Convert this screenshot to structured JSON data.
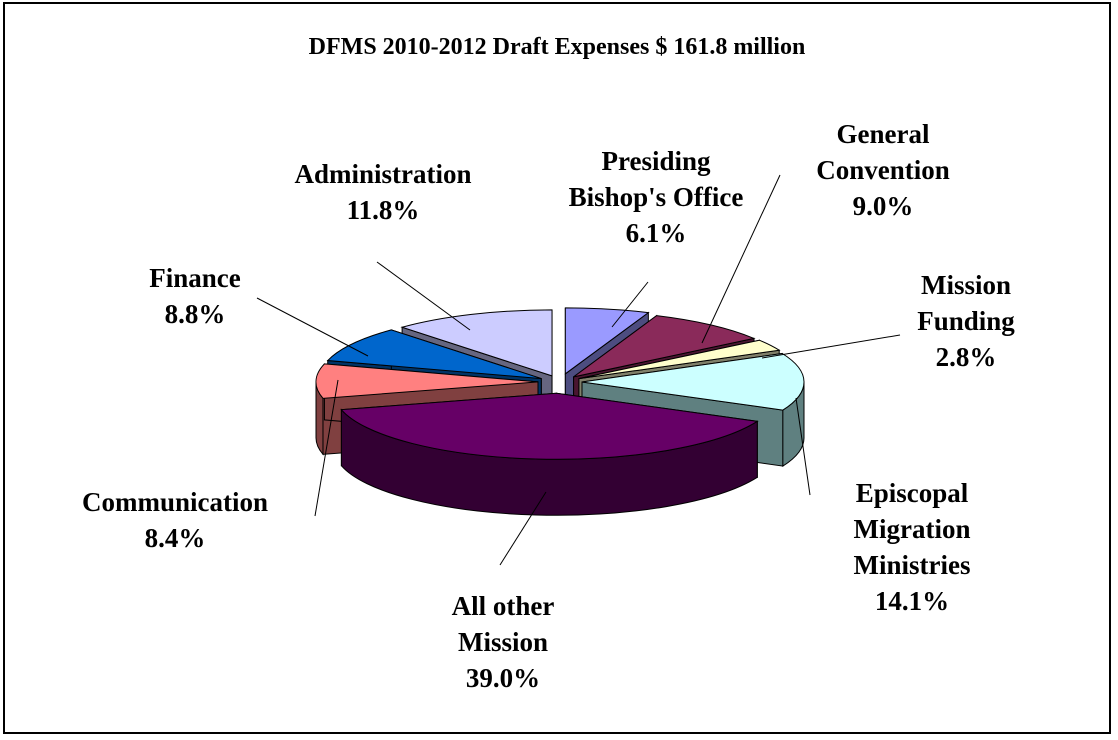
{
  "chart_data": {
    "type": "pie",
    "title": "DFMS 2010-2012 Draft Expenses $ 161.8 million",
    "slices": [
      {
        "label_lines": [
          "Presiding",
          "Bishop's Office"
        ],
        "percent_text": "6.1%",
        "value": 6.1,
        "top": "#9a9aff",
        "side": "#4d4d80"
      },
      {
        "label_lines": [
          "General",
          "Convention"
        ],
        "percent_text": "9.0%",
        "value": 9.0,
        "top": "#8a2a5a",
        "side": "#4a1530"
      },
      {
        "label_lines": [
          "Mission",
          "Funding"
        ],
        "percent_text": "2.8%",
        "value": 2.8,
        "top": "#ffffcc",
        "side": "#80806a"
      },
      {
        "label_lines": [
          "Episcopal",
          "Migration",
          "Ministries"
        ],
        "percent_text": "14.1%",
        "value": 14.1,
        "top": "#ccffff",
        "side": "#5f8080"
      },
      {
        "label_lines": [
          "All other",
          "Mission"
        ],
        "percent_text": "39.0%",
        "value": 39.0,
        "top": "#660066",
        "side": "#330033"
      },
      {
        "label_lines": [
          "Communication"
        ],
        "percent_text": "8.4%",
        "value": 8.4,
        "top": "#ff8080",
        "side": "#804040"
      },
      {
        "label_lines": [
          "Finance"
        ],
        "percent_text": "8.8%",
        "value": 8.8,
        "top": "#0066cc",
        "side": "#003366"
      },
      {
        "label_lines": [
          "Administration"
        ],
        "percent_text": "11.8%",
        "value": 11.8,
        "top": "#ccccff",
        "side": "#666680"
      }
    ]
  }
}
